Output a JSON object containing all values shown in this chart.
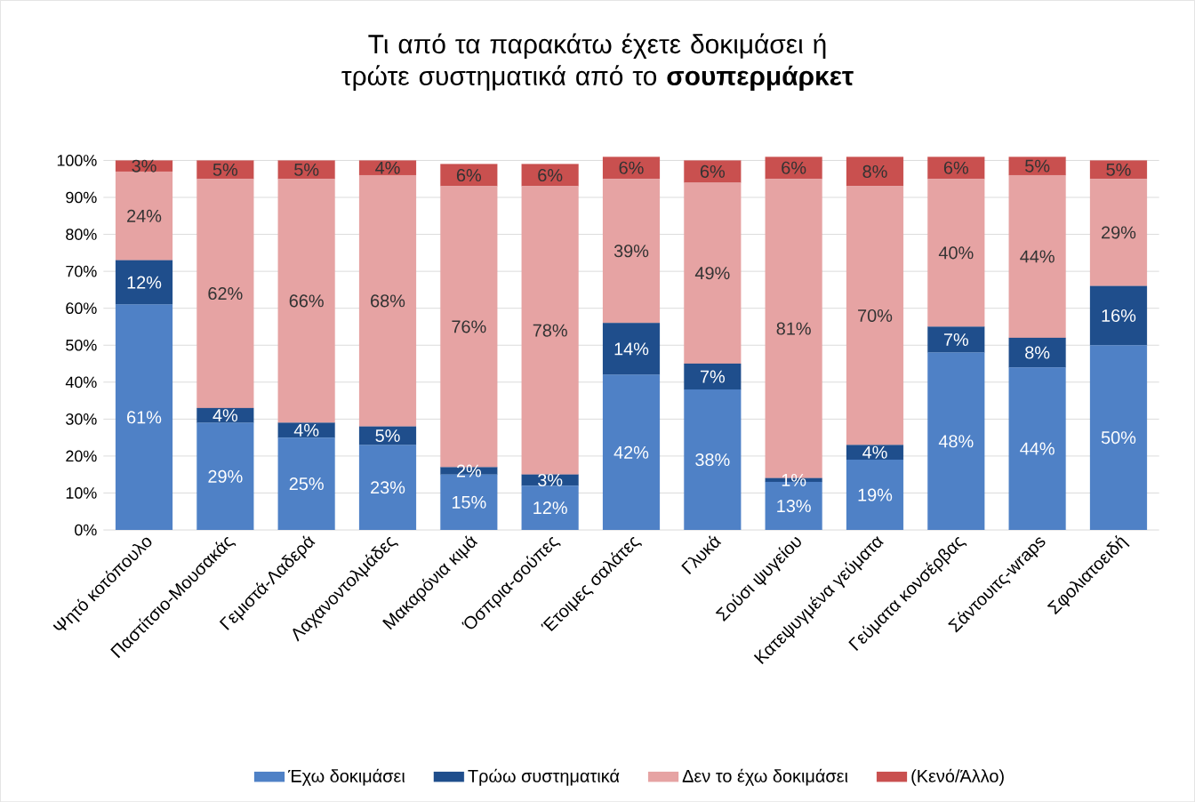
{
  "chart_data": {
    "type": "bar",
    "stacked": true,
    "title": "Τι από τα παρακάτω έχετε δοκιμάσει ή τρώτε συστηματικά από το **σουπερμάρκετ**",
    "categories": [
      "Ψητό κοτόπουλο",
      "Παστίτσιο-Μουσακάς",
      "Γεμιστά-Λαδερά",
      "Λαχανοντολμάδες",
      "Μακαρόνια κιμά",
      "Όσπρια-σούπες",
      "Έτοιμες σαλάτες",
      "Γλυκά",
      "Σούσι ψυγείου",
      "Κατεψυγμένα γεύματα",
      "Γεύματα κονσέρβας",
      "Σάντουιτς-wraps",
      "Σφολιατοειδή"
    ],
    "series": [
      {
        "name": "Έχω δοκιμάσει",
        "color": "#4f81c6",
        "values": [
          61,
          29,
          25,
          23,
          15,
          12,
          42,
          38,
          13,
          19,
          48,
          44,
          50
        ],
        "value_labels": [
          "61%",
          "29%",
          "25%",
          "23%",
          "15%",
          "12%",
          "42%",
          "38%",
          "13%",
          "19%",
          "48%",
          "44%",
          "50%"
        ]
      },
      {
        "name": "Τρώω συστηματικά",
        "color": "#1f4e8c",
        "values": [
          12,
          4,
          4,
          5,
          2,
          3,
          14,
          7,
          1,
          4,
          7,
          8,
          16
        ],
        "value_labels": [
          "12%",
          "4%",
          "4%",
          "5%",
          "2%",
          "3%",
          "14%",
          "7%",
          "1%",
          "4%",
          "7%",
          "8%",
          "16%"
        ]
      },
      {
        "name": "Δεν το έχω δοκιμάσει",
        "color": "#e6a3a3",
        "values": [
          24,
          62,
          66,
          68,
          76,
          78,
          39,
          49,
          81,
          70,
          40,
          44,
          29
        ],
        "value_labels": [
          "24%",
          "62%",
          "66%",
          "68%",
          "76%",
          "78%",
          "39%",
          "49%",
          "81%",
          "70%",
          "40%",
          "44%",
          "29%"
        ]
      },
      {
        "name": "(Κενό/Άλλο)",
        "color": "#c9504f",
        "values": [
          3,
          5,
          5,
          4,
          6,
          6,
          6,
          6,
          6,
          8,
          6,
          5,
          5
        ],
        "value_labels": [
          "3%",
          "5%",
          "5%",
          "4%",
          "6%",
          "6%",
          "6%",
          "6%",
          "6%",
          "8%",
          "6%",
          "5%",
          "5%"
        ]
      }
    ],
    "ylim": [
      0,
      101
    ],
    "yticks": [
      {
        "value": 0,
        "label": "0%"
      },
      {
        "value": 10,
        "label": "10%"
      },
      {
        "value": 20,
        "label": "20%"
      },
      {
        "value": 30,
        "label": "30%"
      },
      {
        "value": 40,
        "label": "40%"
      },
      {
        "value": 50,
        "label": "50%"
      },
      {
        "value": 60,
        "label": "60%"
      },
      {
        "value": 70,
        "label": "70%"
      },
      {
        "value": 80,
        "label": "80%"
      },
      {
        "value": 90,
        "label": "90%"
      },
      {
        "value": 100,
        "label": "100%"
      }
    ],
    "grid": "y",
    "legend": "bottom"
  }
}
